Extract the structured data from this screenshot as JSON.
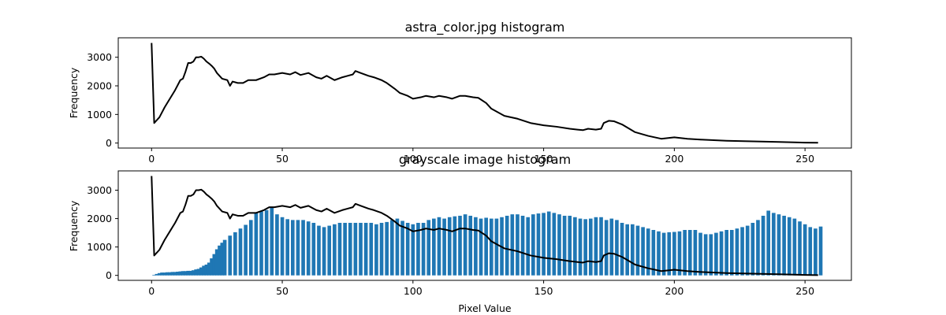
{
  "colors": {
    "bars": "#1f77b4",
    "line": "#000000"
  },
  "chart_data": [
    {
      "type": "line",
      "title": "astra_color.jpg histogram",
      "xlabel": "",
      "ylabel": "Frequency",
      "xlim": [
        -12.75,
        267.75
      ],
      "ylim": [
        -175,
        3680
      ],
      "xticks": [
        0,
        50,
        100,
        150,
        200,
        250
      ],
      "yticks": [
        0,
        1000,
        2000,
        3000
      ],
      "grid": false,
      "series": [
        {
          "x": [
            0,
            1,
            3,
            5,
            7,
            9,
            11,
            12,
            13,
            14,
            15,
            16,
            17,
            18,
            19,
            20,
            21,
            22,
            23,
            24,
            25,
            27,
            29,
            30,
            31,
            33,
            35,
            37,
            40,
            43,
            45,
            47,
            50,
            53,
            55,
            57,
            60,
            63,
            65,
            67,
            70,
            73,
            75,
            77,
            78,
            80,
            83,
            85,
            88,
            90,
            93,
            95,
            98,
            100,
            103,
            105,
            108,
            110,
            113,
            115,
            118,
            120,
            123,
            125,
            128,
            130,
            133,
            135,
            140,
            145,
            150,
            155,
            160,
            163,
            165,
            167,
            170,
            172,
            173,
            175,
            177,
            180,
            185,
            190,
            195,
            200,
            205,
            210,
            220,
            230,
            240,
            250,
            255
          ],
          "y": [
            3500,
            700,
            900,
            1250,
            1550,
            1850,
            2200,
            2250,
            2500,
            2800,
            2800,
            2850,
            3000,
            3000,
            3020,
            2950,
            2850,
            2780,
            2700,
            2600,
            2450,
            2250,
            2200,
            2000,
            2150,
            2100,
            2100,
            2200,
            2200,
            2300,
            2400,
            2400,
            2450,
            2400,
            2480,
            2380,
            2450,
            2300,
            2250,
            2350,
            2200,
            2300,
            2350,
            2400,
            2520,
            2450,
            2350,
            2300,
            2200,
            2100,
            1900,
            1750,
            1650,
            1550,
            1600,
            1650,
            1600,
            1650,
            1600,
            1550,
            1650,
            1650,
            1600,
            1580,
            1400,
            1200,
            1050,
            950,
            850,
            700,
            620,
            570,
            500,
            470,
            450,
            500,
            470,
            500,
            700,
            780,
            760,
            650,
            380,
            250,
            150,
            200,
            150,
            120,
            80,
            60,
            40,
            15,
            10
          ]
        }
      ]
    },
    {
      "type": "bar",
      "title": "grayscale image histogram",
      "xlabel": "Pixel Value",
      "ylabel": "Frequency",
      "xlim": [
        -12.75,
        267.75
      ],
      "ylim": [
        -175,
        3680
      ],
      "xticks": [
        0,
        50,
        100,
        150,
        200,
        250
      ],
      "yticks": [
        0,
        1000,
        2000,
        3000
      ],
      "grid": false,
      "bar_series": {
        "x": [
          1,
          2,
          3,
          4,
          5,
          6,
          7,
          8,
          9,
          10,
          11,
          12,
          13,
          14,
          15,
          16,
          17,
          18,
          19,
          20,
          21,
          22,
          23,
          24,
          25,
          26,
          27,
          28,
          30,
          32,
          34,
          36,
          38,
          40,
          42,
          44,
          46,
          48,
          50,
          52,
          54,
          56,
          58,
          60,
          62,
          64,
          66,
          68,
          70,
          72,
          74,
          76,
          78,
          80,
          82,
          84,
          86,
          88,
          90,
          92,
          94,
          96,
          98,
          100,
          102,
          104,
          106,
          108,
          110,
          112,
          114,
          116,
          118,
          120,
          122,
          124,
          126,
          128,
          130,
          132,
          134,
          136,
          138,
          140,
          142,
          144,
          146,
          148,
          150,
          152,
          154,
          156,
          158,
          160,
          162,
          164,
          166,
          168,
          170,
          172,
          174,
          176,
          178,
          180,
          182,
          184,
          186,
          188,
          190,
          192,
          194,
          196,
          198,
          200,
          202,
          204,
          206,
          208,
          210,
          212,
          214,
          216,
          218,
          220,
          222,
          224,
          226,
          228,
          230,
          232,
          234,
          236,
          238,
          240,
          242,
          244,
          246,
          248,
          250,
          252,
          254,
          256
        ],
        "values": [
          20,
          50,
          80,
          100,
          100,
          110,
          110,
          120,
          120,
          130,
          140,
          150,
          150,
          160,
          160,
          180,
          210,
          230,
          280,
          340,
          380,
          450,
          600,
          750,
          920,
          1050,
          1150,
          1250,
          1400,
          1520,
          1650,
          1780,
          1950,
          2200,
          2250,
          2300,
          2380,
          2150,
          2050,
          1980,
          1950,
          1950,
          1950,
          1900,
          1850,
          1750,
          1700,
          1750,
          1800,
          1850,
          1850,
          1850,
          1850,
          1850,
          1850,
          1850,
          1800,
          1850,
          1880,
          1950,
          2000,
          1920,
          1850,
          1800,
          1850,
          1850,
          1950,
          2000,
          2050,
          2000,
          2050,
          2080,
          2100,
          2150,
          2100,
          2050,
          2000,
          2030,
          2000,
          2000,
          2050,
          2100,
          2150,
          2150,
          2100,
          2050,
          2150,
          2180,
          2200,
          2250,
          2200,
          2150,
          2100,
          2100,
          2050,
          2000,
          1980,
          2000,
          2050,
          2050,
          1950,
          2000,
          1950,
          1850,
          1800,
          1800,
          1750,
          1700,
          1650,
          1600,
          1550,
          1500,
          1520,
          1530,
          1550,
          1600,
          1600,
          1600,
          1500,
          1450,
          1450,
          1500,
          1550,
          1600,
          1600,
          1650,
          1700,
          1750,
          1850,
          1950,
          2100,
          2280,
          2200,
          2150,
          2100,
          2050,
          2000,
          1900,
          1800,
          1700,
          1650,
          1720
        ]
      },
      "series": [
        {
          "x": [
            0,
            1,
            3,
            5,
            7,
            9,
            11,
            12,
            13,
            14,
            15,
            16,
            17,
            18,
            19,
            20,
            21,
            22,
            23,
            24,
            25,
            27,
            29,
            30,
            31,
            33,
            35,
            37,
            40,
            43,
            45,
            47,
            50,
            53,
            55,
            57,
            60,
            63,
            65,
            67,
            70,
            73,
            75,
            77,
            78,
            80,
            83,
            85,
            88,
            90,
            93,
            95,
            98,
            100,
            103,
            105,
            108,
            110,
            113,
            115,
            118,
            120,
            123,
            125,
            128,
            130,
            133,
            135,
            140,
            145,
            150,
            155,
            160,
            163,
            165,
            167,
            170,
            172,
            173,
            175,
            177,
            180,
            185,
            190,
            195,
            200,
            205,
            210,
            220,
            230,
            240,
            250,
            255
          ],
          "y": [
            3500,
            700,
            900,
            1250,
            1550,
            1850,
            2200,
            2250,
            2500,
            2800,
            2800,
            2850,
            3000,
            3000,
            3020,
            2950,
            2850,
            2780,
            2700,
            2600,
            2450,
            2250,
            2200,
            2000,
            2150,
            2100,
            2100,
            2200,
            2200,
            2300,
            2400,
            2400,
            2450,
            2400,
            2480,
            2380,
            2450,
            2300,
            2250,
            2350,
            2200,
            2300,
            2350,
            2400,
            2520,
            2450,
            2350,
            2300,
            2200,
            2100,
            1900,
            1750,
            1650,
            1550,
            1600,
            1650,
            1600,
            1650,
            1600,
            1550,
            1650,
            1650,
            1600,
            1580,
            1400,
            1200,
            1050,
            950,
            850,
            700,
            620,
            570,
            500,
            470,
            450,
            500,
            470,
            500,
            700,
            780,
            760,
            650,
            380,
            250,
            150,
            200,
            150,
            120,
            80,
            60,
            40,
            15,
            10
          ]
        }
      ]
    }
  ]
}
